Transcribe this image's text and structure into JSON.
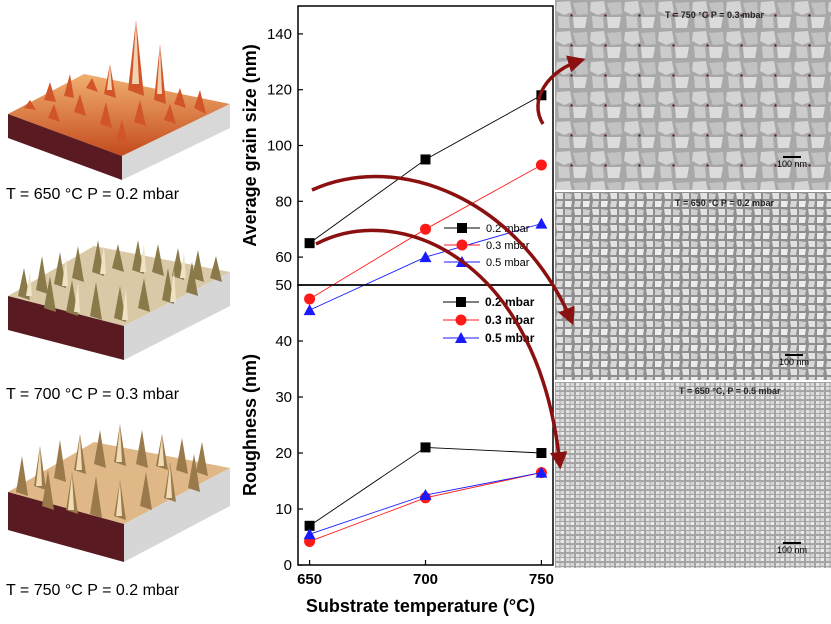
{
  "afm_panels": [
    {
      "caption": "T = 650 °C  P = 0.2 mbar"
    },
    {
      "caption": "T = 700 °C  P = 0.3 mbar"
    },
    {
      "caption": "T = 750 °C  P = 0.2 mbar"
    }
  ],
  "sem_panels": [
    {
      "caption": "T = 750 °C  P = 0.3 mbar",
      "scale": "100 nm"
    },
    {
      "caption": "T = 650 °C   P = 0.2 mbar",
      "scale": "100 nm"
    },
    {
      "caption": "T = 650 °C,  P = 0.5 mbar",
      "scale": "100 nm"
    }
  ],
  "colors": {
    "s02": "#000000",
    "s03": "#ff1a1a",
    "s05": "#1a1aff",
    "arrow": "#8b1010"
  },
  "chart_data": [
    {
      "type": "line",
      "x": [
        650,
        700,
        750
      ],
      "xlim": [
        645,
        755
      ],
      "ylabel": "Average grain size (nm)",
      "ylim": [
        50,
        150
      ],
      "yticks": [
        50,
        60,
        80,
        100,
        120,
        140
      ],
      "series": [
        {
          "name": "0.2 mbar",
          "marker": "square",
          "values": [
            65,
            95,
            118
          ]
        },
        {
          "name": "0.3 mbar",
          "marker": "circle",
          "values": [
            45,
            70,
            93
          ]
        },
        {
          "name": "0.5 mbar",
          "marker": "triangle",
          "values": [
            41,
            60,
            72
          ]
        }
      ],
      "legend": "lower-right"
    },
    {
      "type": "line",
      "x": [
        650,
        700,
        750
      ],
      "xlim": [
        645,
        755
      ],
      "xlabel": "Substrate temperature (°C)",
      "xticks": [
        650,
        700,
        750
      ],
      "ylabel": "Roughness (nm)",
      "ylim": [
        0,
        50
      ],
      "yticks": [
        0,
        10,
        20,
        30,
        40
      ],
      "series": [
        {
          "name": "0.2 mbar",
          "marker": "square",
          "values": [
            7,
            21,
            20
          ]
        },
        {
          "name": "0.3 mbar",
          "marker": "circle",
          "values": [
            4.2,
            12,
            16.5
          ]
        },
        {
          "name": "0.5 mbar",
          "marker": "triangle",
          "values": [
            5.5,
            12.5,
            16.5
          ]
        }
      ],
      "legend": "top-right"
    }
  ]
}
